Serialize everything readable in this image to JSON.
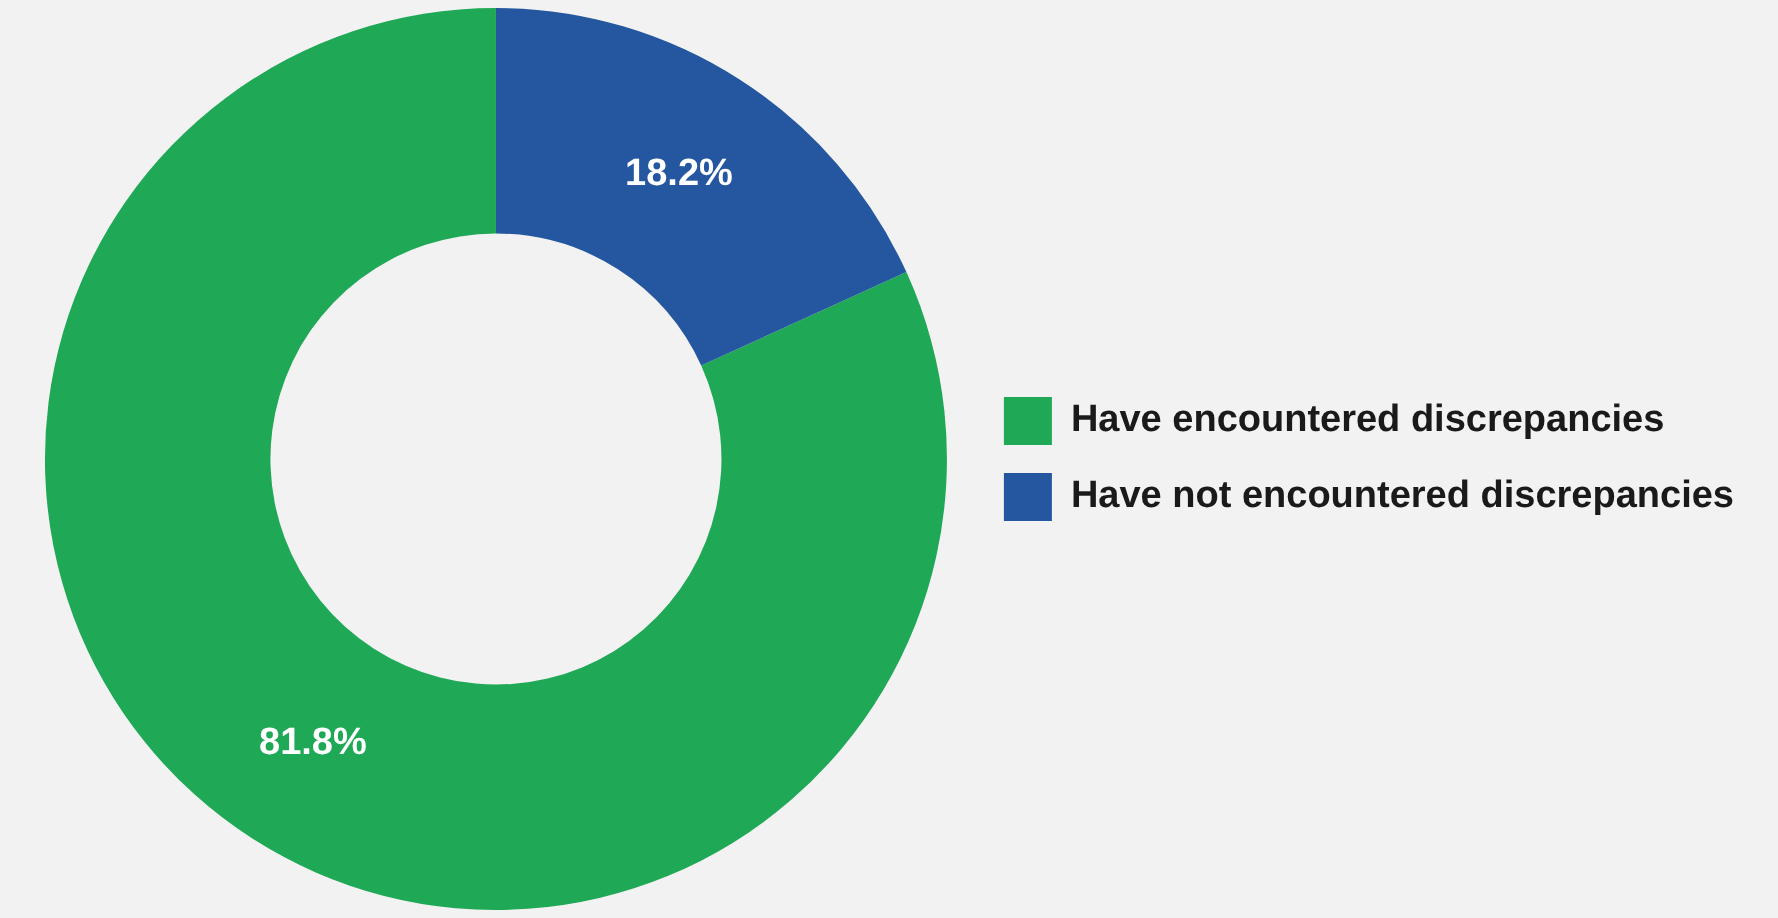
{
  "chart_data": {
    "type": "donut",
    "categories": [
      "Have encountered discrepancies",
      "Have not encountered discrepancies"
    ],
    "values": [
      81.8,
      18.2
    ],
    "colors": [
      "#1fa855",
      "#2457a0"
    ],
    "value_labels": [
      "81.8%",
      "18.2%"
    ],
    "legend": "right"
  }
}
